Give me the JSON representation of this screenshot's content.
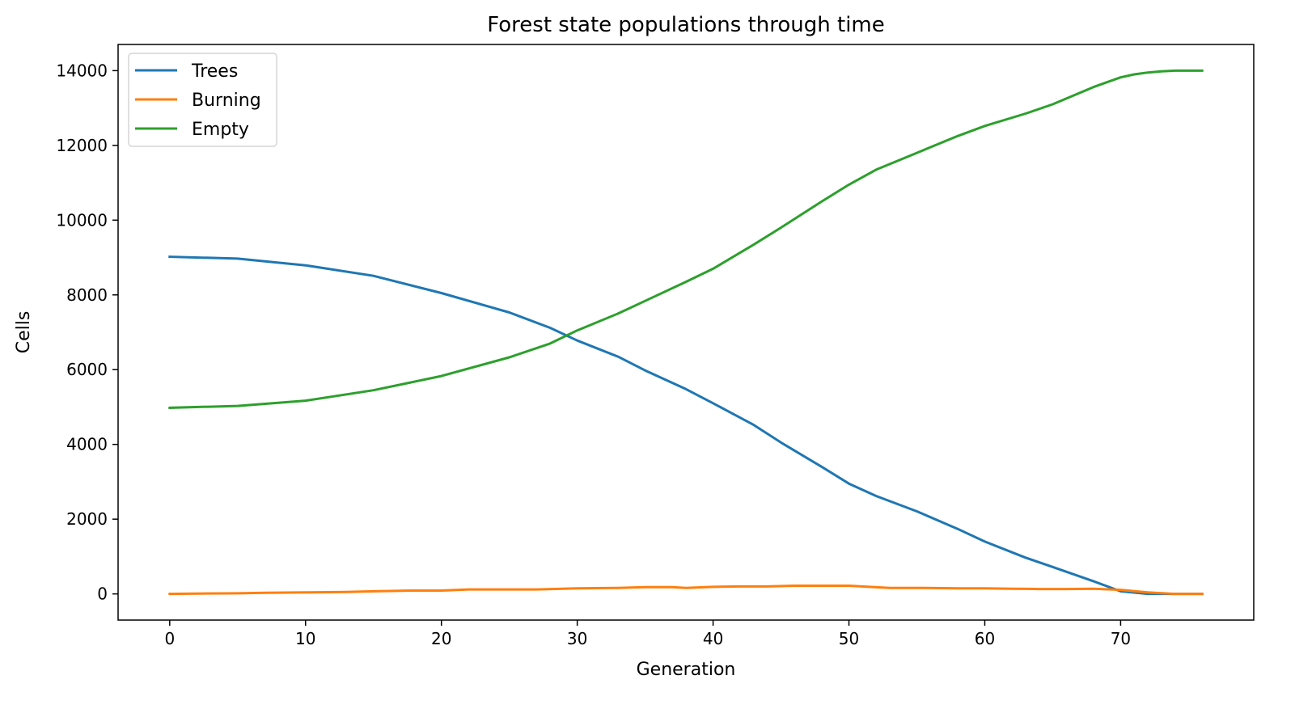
{
  "chart_data": {
    "type": "line",
    "title": "Forest state populations through time",
    "xlabel": "Generation",
    "ylabel": "Cells",
    "xlim": [
      -3.8,
      79.8
    ],
    "ylim": [
      -700,
      14700
    ],
    "xticks": [
      0,
      10,
      20,
      30,
      40,
      50,
      60,
      70
    ],
    "yticks": [
      0,
      2000,
      4000,
      6000,
      8000,
      10000,
      12000,
      14000
    ],
    "grid": false,
    "legend_position": "top-left",
    "series": [
      {
        "name": "Trees",
        "color": "#1f77b4",
        "x": [
          0,
          5,
          10,
          15,
          20,
          25,
          28,
          30,
          33,
          35,
          38,
          40,
          43,
          45,
          48,
          50,
          52,
          55,
          58,
          60,
          63,
          65,
          68,
          70,
          72,
          73,
          75,
          76
        ],
        "y": [
          9020,
          8970,
          8790,
          8510,
          8050,
          7530,
          7120,
          6780,
          6350,
          5980,
          5480,
          5100,
          4520,
          4050,
          3400,
          2950,
          2620,
          2210,
          1740,
          1400,
          970,
          720,
          340,
          70,
          0,
          0,
          0,
          0
        ]
      },
      {
        "name": "Burning",
        "color": "#ff7f0e",
        "x": [
          0,
          2,
          5,
          7,
          10,
          13,
          15,
          18,
          20,
          22,
          25,
          27,
          30,
          33,
          35,
          37,
          38,
          40,
          42,
          44,
          46,
          48,
          50,
          53,
          55,
          58,
          60,
          62,
          64,
          66,
          68,
          70,
          72,
          74,
          76
        ],
        "y": [
          0,
          10,
          15,
          30,
          40,
          50,
          70,
          90,
          90,
          120,
          120,
          120,
          150,
          160,
          180,
          180,
          160,
          190,
          200,
          200,
          220,
          220,
          220,
          160,
          160,
          150,
          150,
          140,
          130,
          130,
          140,
          110,
          40,
          0,
          0
        ]
      },
      {
        "name": "Empty",
        "color": "#2ca02c",
        "x": [
          0,
          5,
          10,
          15,
          20,
          25,
          28,
          30,
          33,
          35,
          38,
          40,
          43,
          45,
          48,
          50,
          52,
          55,
          58,
          60,
          63,
          65,
          68,
          70,
          71,
          72,
          73,
          74,
          75,
          76
        ],
        "y": [
          4980,
          5030,
          5170,
          5450,
          5830,
          6330,
          6700,
          7050,
          7500,
          7840,
          8350,
          8700,
          9350,
          9800,
          10500,
          10950,
          11350,
          11800,
          12250,
          12520,
          12850,
          13100,
          13560,
          13820,
          13900,
          13950,
          13980,
          14000,
          14000,
          14000
        ]
      }
    ]
  }
}
